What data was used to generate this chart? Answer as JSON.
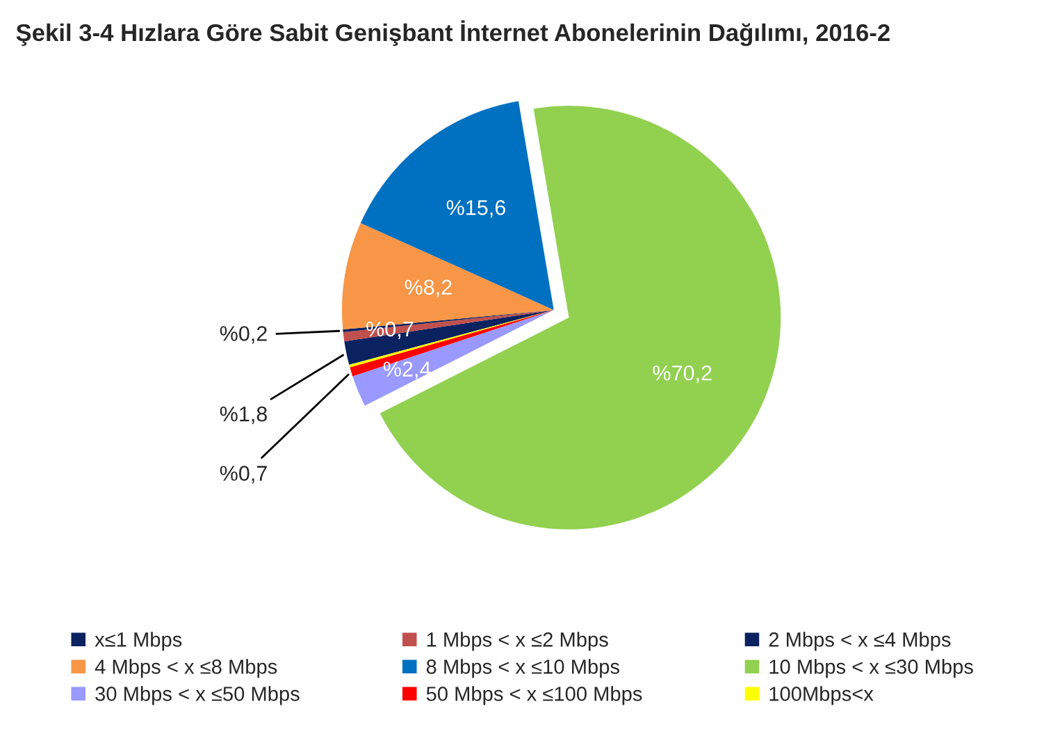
{
  "chart_data": {
    "type": "pie",
    "title": "Şekil 3-4 Hızlara Göre Sabit Genişbant İnternet Abonelerinin Dağılımı, 2016-2",
    "categories": [
      "x≤1 Mbps",
      "1 Mbps < x ≤2 Mbps",
      "2 Mbps < x ≤4 Mbps",
      "4 Mbps < x ≤8 Mbps",
      "8 Mbps < x ≤10 Mbps",
      "10 Mbps < x ≤30 Mbps",
      "30 Mbps < x ≤50 Mbps",
      "50 Mbps < x ≤100 Mbps",
      "100Mbps<x"
    ],
    "values": [
      1.8,
      0.7,
      0.2,
      8.2,
      15.6,
      70.2,
      2.4,
      0.7,
      0.2
    ],
    "value_labels": [
      "%1,8",
      "%0,7",
      "%0,2",
      "%8,2",
      "%15,6",
      "%70,2",
      "%2,4",
      "%0,7",
      null
    ],
    "colors": [
      "#0b2260",
      "#c0504d",
      "#0b2260",
      "#f79646",
      "#0070c0",
      "#92d050",
      "#9999ff",
      "#ff0000",
      "#ffff00"
    ],
    "legend": "bottom"
  }
}
